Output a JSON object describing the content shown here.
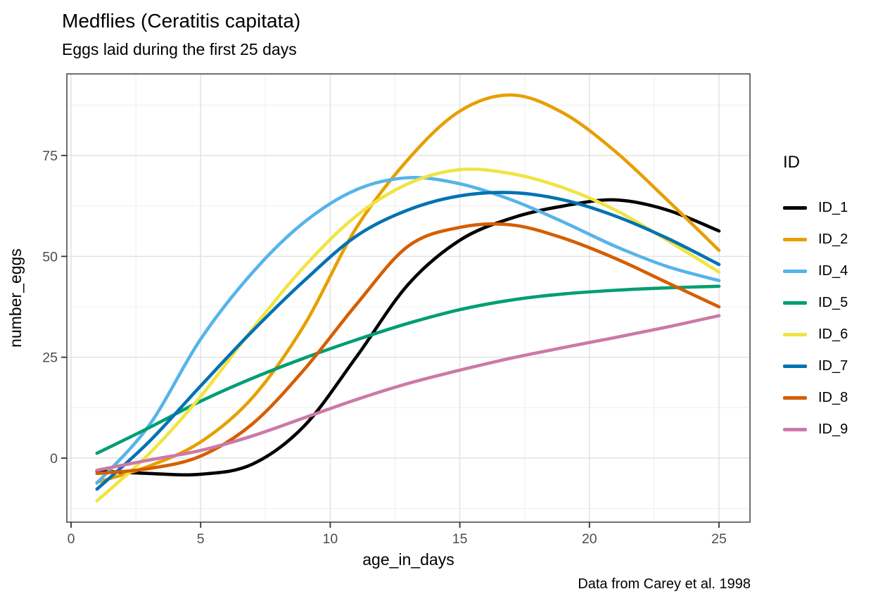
{
  "title": "Medflies (Ceratitis capitata)",
  "subtitle": "Eggs laid during the first 25 days",
  "caption": "Data from Carey et al. 1998",
  "chart_data": {
    "type": "line",
    "title": "Medflies (Ceratitis capitata)",
    "subtitle": "Eggs laid during the first 25 days",
    "caption": "Data from Carey et al. 1998",
    "xlabel": "age_in_days",
    "ylabel": "number_eggs",
    "legend_title": "ID",
    "legend_position": "right",
    "grid": "major+minor",
    "xlim": [
      -0.2,
      26.2
    ],
    "ylim": [
      -15.9,
      95.2
    ],
    "x_ticks": [
      0,
      5,
      10,
      15,
      20,
      25
    ],
    "y_ticks": [
      0,
      25,
      50,
      75
    ],
    "x_minor_ticks": [
      2.5,
      7.5,
      12.5,
      17.5,
      22.5
    ],
    "y_minor_ticks": [
      -12.5,
      12.5,
      37.5,
      62.5,
      87.5
    ],
    "x": [
      1,
      3,
      5,
      7,
      9,
      11,
      13,
      15,
      17,
      19,
      21,
      23,
      25
    ],
    "series": [
      {
        "name": "ID_1",
        "color": "#000000",
        "values": [
          -3.2,
          -3.8,
          -4.0,
          -1.5,
          8,
          25,
          43,
          54,
          59.5,
          62.5,
          64,
          61.5,
          56.3
        ]
      },
      {
        "name": "ID_2",
        "color": "#E69F00",
        "values": [
          -6,
          -2,
          4,
          15,
          33,
          57,
          74,
          86,
          90,
          85.5,
          76,
          64,
          51.5
        ]
      },
      {
        "name": "ID_4",
        "color": "#56B4E9",
        "values": [
          -6.2,
          8,
          29.5,
          46,
          58.5,
          66.5,
          69.5,
          68,
          64,
          58.5,
          52.5,
          47.5,
          44
        ]
      },
      {
        "name": "ID_5",
        "color": "#009E73",
        "values": [
          1.2,
          7.5,
          14.1,
          19.8,
          24.8,
          29.3,
          33.4,
          36.8,
          39.2,
          40.7,
          41.6,
          42.2,
          42.6
        ]
      },
      {
        "name": "ID_6",
        "color": "#F0E442",
        "values": [
          -10.6,
          1,
          15.3,
          32,
          47.5,
          60,
          68,
          71.5,
          70.5,
          67,
          61.5,
          54,
          46.1
        ]
      },
      {
        "name": "ID_7",
        "color": "#0072B2",
        "values": [
          -7.7,
          4,
          17.9,
          31.5,
          44,
          55,
          61.5,
          65,
          65.8,
          64,
          60,
          54.5,
          48
        ]
      },
      {
        "name": "ID_8",
        "color": "#D55E00",
        "values": [
          -3.8,
          -2.6,
          0.5,
          8.5,
          22,
          38,
          52.5,
          57.2,
          57.8,
          54.5,
          49.5,
          43.5,
          37.5
        ]
      },
      {
        "name": "ID_9",
        "color": "#CC79A7",
        "values": [
          -3,
          -0.5,
          1.9,
          5.5,
          10,
          14.5,
          18.5,
          21.8,
          24.8,
          27.4,
          29.9,
          32.5,
          35.3
        ]
      }
    ]
  }
}
